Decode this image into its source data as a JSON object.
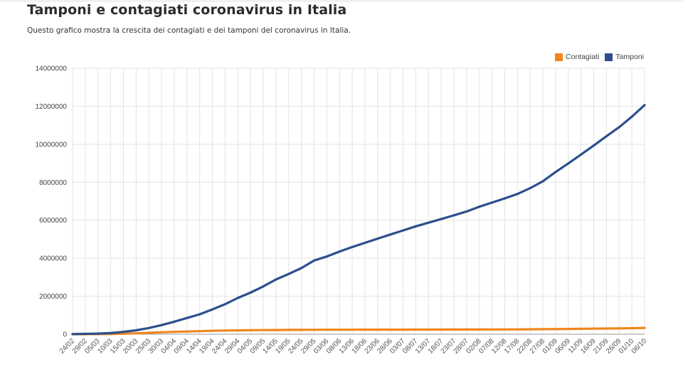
{
  "chart_data": {
    "type": "line",
    "title": "Tamponi e contagiati coronavirus in Italia",
    "subtitle": "Questo grafico mostra la crescita dei contagiati e dei tamponi del coronavirus in Italia.",
    "xlabel": "",
    "ylabel": "",
    "ylim": [
      0,
      14000000
    ],
    "y_ticks": [
      0,
      2000000,
      4000000,
      6000000,
      8000000,
      10000000,
      12000000,
      14000000
    ],
    "y_tick_labels": [
      "0",
      "2000000",
      "4000000",
      "6000000",
      "8000000",
      "10000000",
      "12000000",
      "14000000"
    ],
    "x_tick_labels": [
      "24/02",
      "29/02",
      "05/03",
      "10/03",
      "15/03",
      "20/03",
      "25/03",
      "30/03",
      "04/04",
      "09/04",
      "14/04",
      "19/04",
      "24/04",
      "29/04",
      "04/05",
      "09/05",
      "14/05",
      "19/05",
      "24/05",
      "29/05",
      "03/06",
      "08/06",
      "13/06",
      "18/06",
      "23/06",
      "28/06",
      "03/07",
      "08/07",
      "13/07",
      "18/07",
      "23/07",
      "28/07",
      "02/08",
      "07/08",
      "12/08",
      "17/08",
      "22/08",
      "27/08",
      "01/09",
      "06/09",
      "11/09",
      "16/09",
      "21/09",
      "26/09",
      "01/10",
      "06/10"
    ],
    "grid": true,
    "legend_position": "top-right",
    "colors": {
      "contagiati": "#f0861d",
      "tamponi": "#2c4f8c",
      "grid": "#e3e3e3"
    },
    "series": [
      {
        "name": "Contagiati",
        "values": [
          229,
          1128,
          3858,
          10149,
          24747,
          47021,
          74386,
          101739,
          124632,
          143626,
          162488,
          178972,
          192994,
          203591,
          211938,
          218268,
          222104,
          226699,
          229858,
          232664,
          234013,
          235278,
          236651,
          237828,
          238833,
          240136,
          241184,
          241956,
          243061,
          244434,
          245864,
          247158,
          248229,
          249756,
          251713,
          253915,
          258136,
          263949,
          270189,
          276338,
          283180,
          291442,
          298156,
          308104,
          317409,
          330263
        ]
      },
      {
        "name": "Tamponi",
        "values": [
          4324,
          18661,
          32362,
          60761,
          124899,
          206886,
          324445,
          477359,
          657224,
          853369,
          1047252,
          1305833,
          1579909,
          1910761,
          2191403,
          2514234,
          2881199,
          3171719,
          3482253,
          3878739,
          4090000,
          4350000,
          4590000,
          4810000,
          5030000,
          5250000,
          5460000,
          5680000,
          5870000,
          6060000,
          6260000,
          6460000,
          6710000,
          6930000,
          7150000,
          7380000,
          7690000,
          8050000,
          8540000,
          8990000,
          9460000,
          9930000,
          10420000,
          10900000,
          11450000,
          12060000
        ]
      }
    ]
  }
}
